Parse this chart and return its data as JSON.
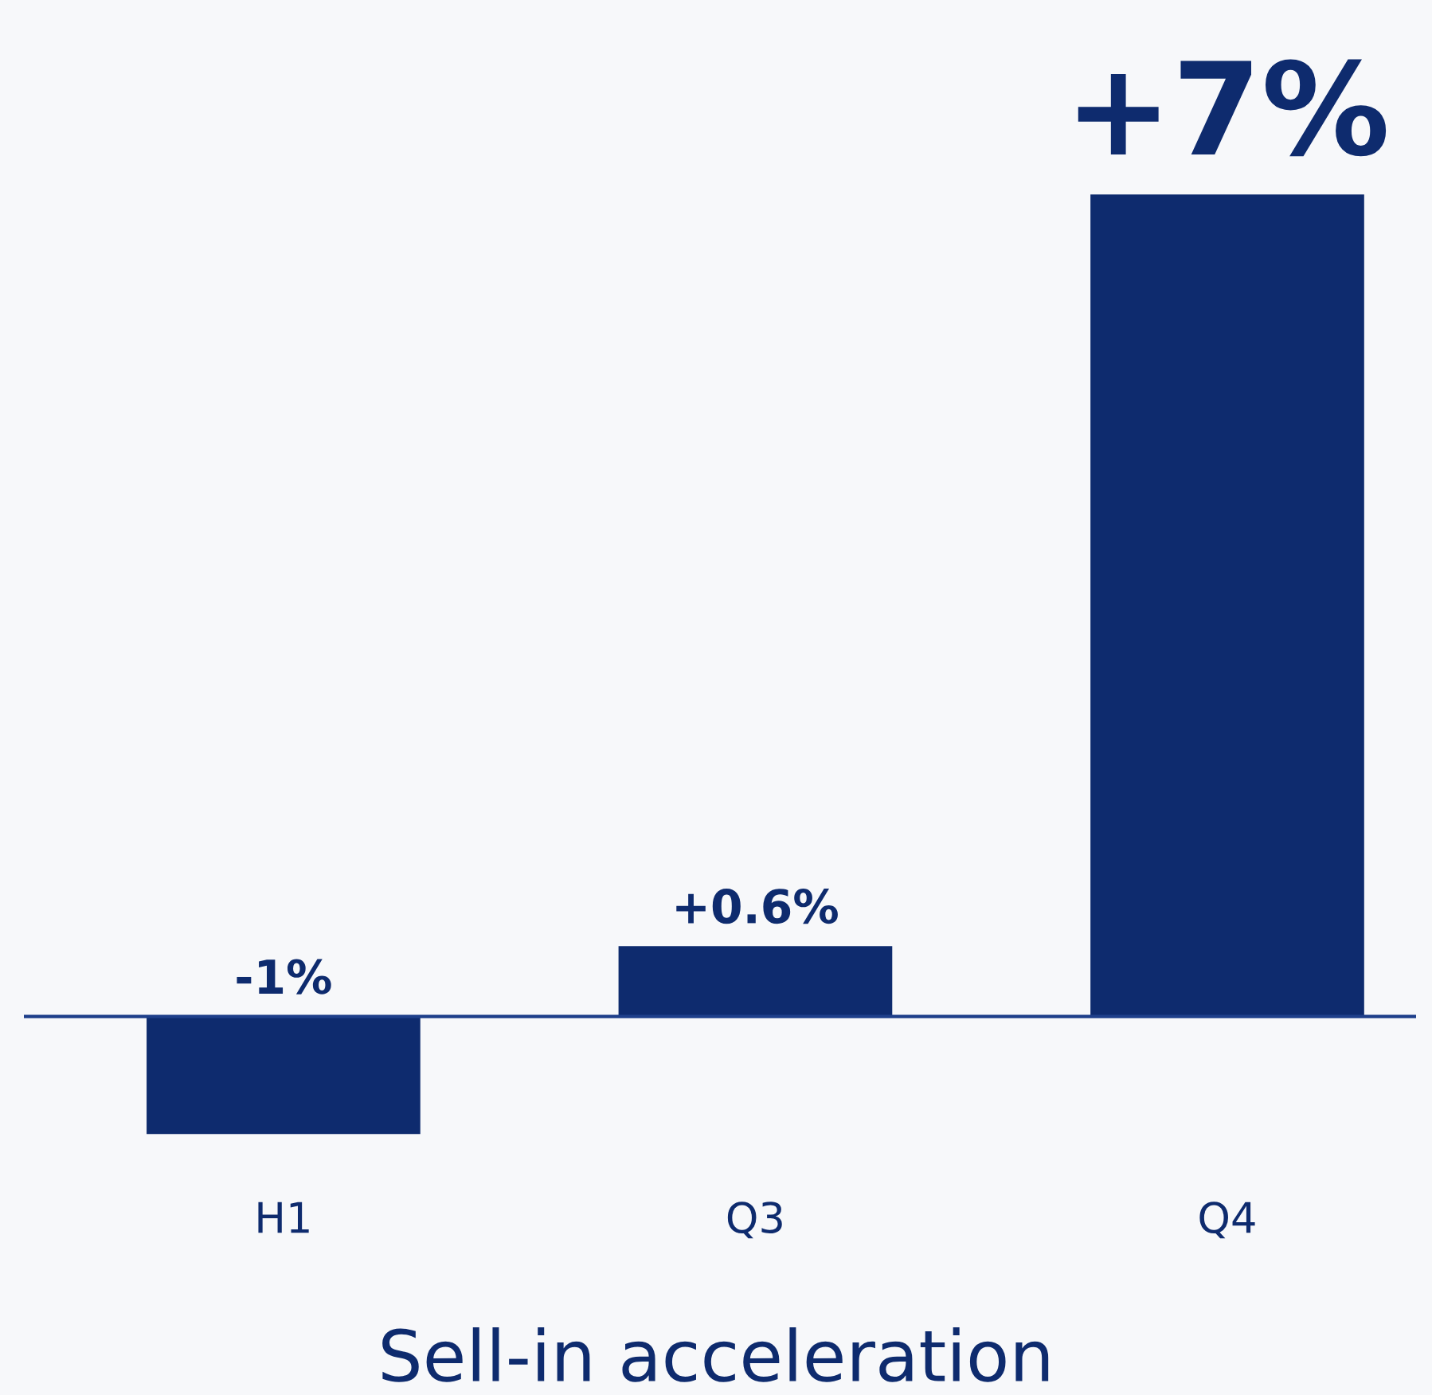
{
  "chart_data": {
    "type": "bar",
    "categories": [
      "H1",
      "Q3",
      "Q4"
    ],
    "values": [
      -1,
      0.6,
      7
    ],
    "value_labels": [
      "-1%",
      "+0.6%",
      "+7%"
    ],
    "color": "#0e2b6e",
    "xlabel": "Sell-in acceleration",
    "ref_lines": [
      {
        "axis": "y",
        "value": 0,
        "color": "#1e3f8a"
      }
    ],
    "grid": false,
    "legend": false
  }
}
